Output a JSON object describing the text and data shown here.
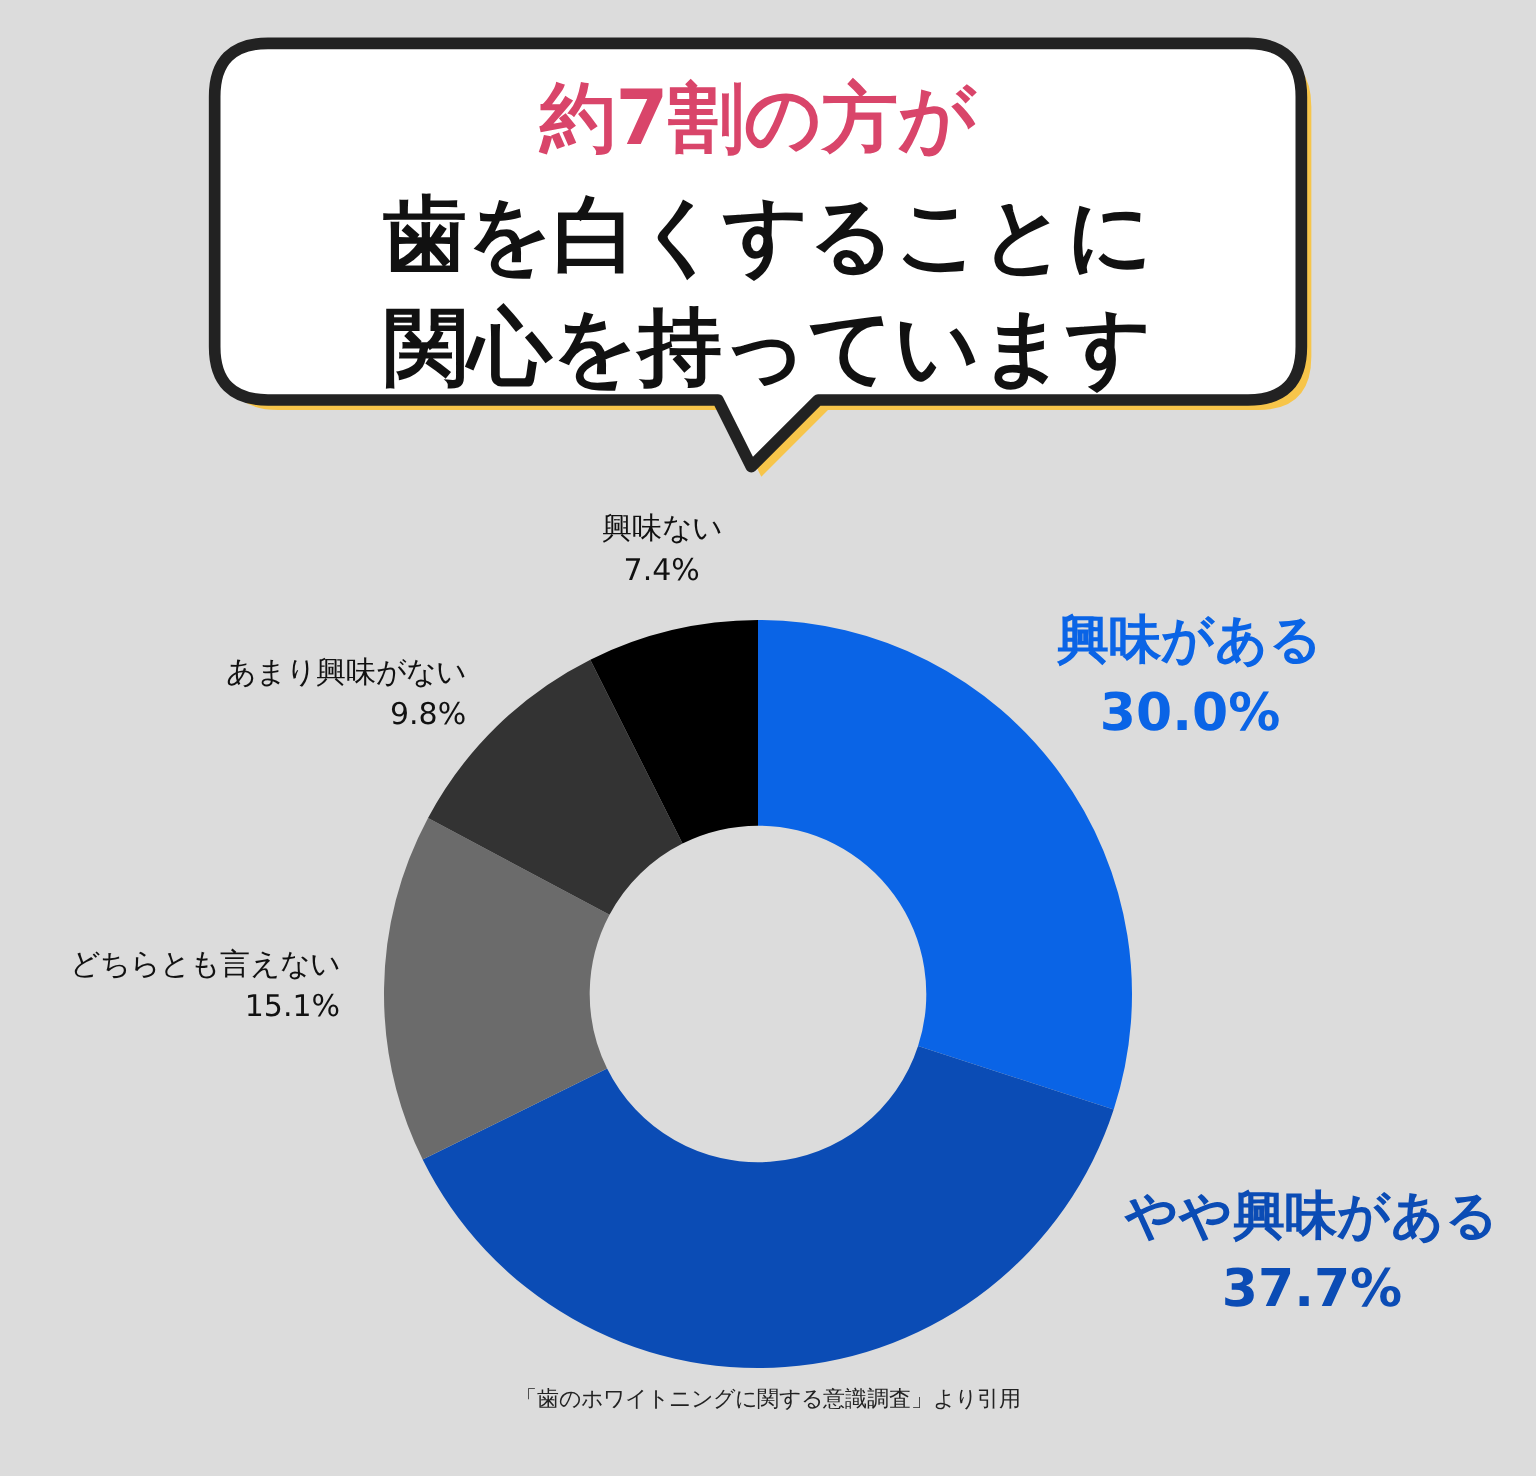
{
  "chart_data": {
    "type": "donut",
    "title": "約7割の方が",
    "subtitle": "歯を白くすることに関心を持っています",
    "categories": [
      "興味がある",
      "やや興味がある",
      "どちらとも言えない",
      "あまり興味がない",
      "興味ない"
    ],
    "values": [
      30.0,
      37.7,
      15.1,
      9.8,
      7.4
    ],
    "colors": [
      "#0a64e6",
      "#0b4cb5",
      "#6b6b6b",
      "#333333",
      "#000000"
    ],
    "value_labels": [
      "30.0%",
      "37.7%",
      "15.1%",
      "9.8%",
      "7.4%"
    ],
    "legend": false,
    "annotations": [
      "「歯のホワイトニングに関する意識調査」より引用"
    ]
  }
}
